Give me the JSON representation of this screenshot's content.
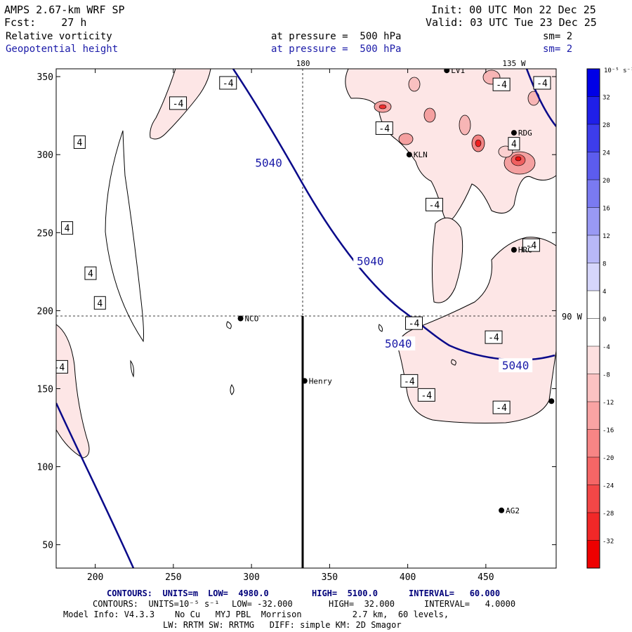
{
  "header": {
    "model_title": "AMPS 2.67-km WRF SP",
    "forecast": "Fcst:    27 h",
    "init": "Init: 00 UTC Mon 22 Dec 25",
    "valid": "Valid: 03 UTC Tue 23 Dec 25",
    "field1": {
      "name": "Relative vorticity",
      "pressure": "at pressure =  500 hPa",
      "smoothing": "sm= 2"
    },
    "field2": {
      "name": "Geopotential height",
      "pressure": "at pressure =  500 hPa",
      "smoothing": "sm= 2"
    }
  },
  "map": {
    "x_ticks": [
      200,
      250,
      300,
      350,
      400,
      450
    ],
    "y_ticks": [
      50,
      100,
      150,
      200,
      250,
      300,
      350
    ],
    "x_range": [
      175,
      495
    ],
    "y_range": [
      35,
      355
    ],
    "meridian_labels": [
      {
        "text": "180",
        "x": 333
      },
      {
        "text": "135 W",
        "x": 468
      }
    ],
    "parallel_label": {
      "text": "90 W",
      "y": 196
    },
    "cross_meridian_x": 333,
    "cross_parallel_y": 196,
    "stations": [
      {
        "name": "NCO",
        "x": 293,
        "y": 195
      },
      {
        "name": "Henry",
        "x": 334,
        "y": 155
      },
      {
        "name": "KLN",
        "x": 401,
        "y": 300
      },
      {
        "name": "RDG",
        "x": 468,
        "y": 314
      },
      {
        "name": "HRC",
        "x": 468,
        "y": 239
      },
      {
        "name": "AG2",
        "x": 460,
        "y": 72
      },
      {
        "name": "LV1",
        "x": 425,
        "y": 354
      },
      {
        "name": "",
        "x": 492,
        "y": 142
      }
    ],
    "height_contour_label": "5040",
    "height_label_positions": [
      {
        "x": 311,
        "y": 295
      },
      {
        "x": 376,
        "y": 232
      },
      {
        "x": 394,
        "y": 179
      },
      {
        "x": 469,
        "y": 165
      }
    ],
    "vorticity_labels": [
      {
        "text": "-4",
        "x": 253,
        "y": 333
      },
      {
        "text": "-4",
        "x": 285,
        "y": 346
      },
      {
        "text": "-4",
        "x": 385,
        "y": 317
      },
      {
        "text": "-4",
        "x": 417,
        "y": 268
      },
      {
        "text": "-4",
        "x": 460,
        "y": 345
      },
      {
        "text": "-4",
        "x": 486,
        "y": 346
      },
      {
        "text": "4",
        "x": 468,
        "y": 307
      },
      {
        "text": "-4",
        "x": 479,
        "y": 242
      },
      {
        "text": "-4",
        "x": 404,
        "y": 192
      },
      {
        "text": "-4",
        "x": 455,
        "y": 183
      },
      {
        "text": "-4",
        "x": 177,
        "y": 164
      },
      {
        "text": "-4",
        "x": 401,
        "y": 155
      },
      {
        "text": "-4",
        "x": 412,
        "y": 146
      },
      {
        "text": "-4",
        "x": 460,
        "y": 138
      },
      {
        "text": "4",
        "x": 190,
        "y": 308
      },
      {
        "text": "4",
        "x": 182,
        "y": 253
      },
      {
        "text": "4",
        "x": 197,
        "y": 224
      },
      {
        "text": "4",
        "x": 203,
        "y": 205
      }
    ]
  },
  "colorbar": {
    "unit_label": "10⁻⁵ s⁻¹",
    "levels": [
      32,
      28,
      24,
      20,
      16,
      12,
      8,
      4,
      0,
      -4,
      -8,
      -12,
      -16,
      -20,
      -24,
      -28,
      -32
    ],
    "colors": [
      "#0000e6",
      "#1f1fe8",
      "#3d3deb",
      "#5c5cee",
      "#7a7af1",
      "#9999f4",
      "#b8b8f8",
      "#d6d6fb",
      "#ffffff",
      "#ffffff",
      "#fde0e0",
      "#fbc2c2",
      "#f9a3a3",
      "#f78585",
      "#f56666",
      "#f34747",
      "#f12828",
      "#ee0000"
    ]
  },
  "footer": {
    "height_contours": {
      "prefix": "CONTOURS:  UNITS=m",
      "low": "LOW=  4980.0",
      "high": "HIGH=  5100.0",
      "interval": "INTERVAL=   60.000"
    },
    "vort_contours": {
      "prefix": "CONTOURS:  UNITS=10⁻⁵ s⁻¹",
      "low": "LOW= -32.000",
      "high": "HIGH=  32.000",
      "interval": "INTERVAL=   4.0000"
    },
    "model_info": "Model Info: V4.3.3    No Cu   MYJ PBL  Morrison          2.7 km,  60 levels,",
    "model_info2": "LW: RRTM SW: RRTMG   DIFF: simple KM: 2D Smagor"
  }
}
